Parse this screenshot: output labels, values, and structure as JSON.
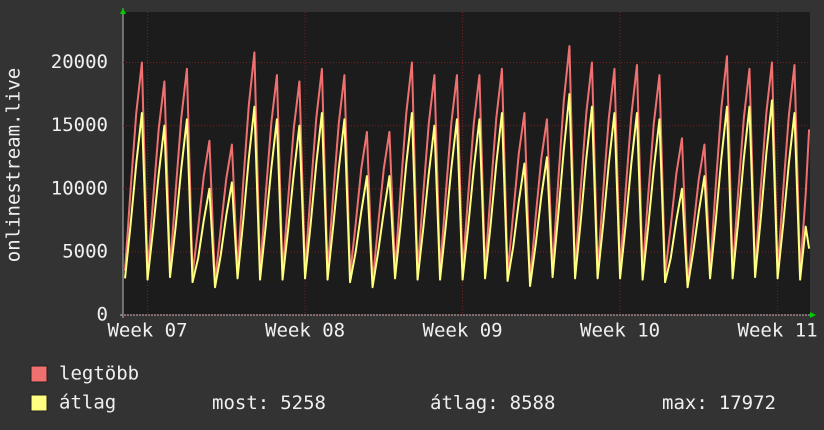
{
  "chart_data": {
    "type": "line",
    "y_label": "onlinestream.live",
    "xlim": [
      -1.09,
      29.44
    ],
    "ylim": [
      0,
      24000
    ],
    "xticks": [
      {
        "value": 0,
        "label": "Week 07"
      },
      {
        "value": 7,
        "label": "Week 08"
      },
      {
        "value": 14,
        "label": "Week 09"
      },
      {
        "value": 21,
        "label": "Week 10"
      },
      {
        "value": 28,
        "label": "Week 11"
      }
    ],
    "yticks": [
      0,
      5000,
      10000,
      15000,
      20000
    ],
    "grid": true,
    "x": [
      -1,
      -0.75,
      -0.5,
      -0.25,
      0,
      0.25,
      0.5,
      0.75,
      1,
      1.25,
      1.5,
      1.75,
      2,
      2.25,
      2.5,
      2.75,
      3,
      3.25,
      3.5,
      3.75,
      4,
      4.25,
      4.5,
      4.75,
      5,
      5.25,
      5.5,
      5.75,
      6,
      6.25,
      6.5,
      6.75,
      7,
      7.25,
      7.5,
      7.75,
      8,
      8.25,
      8.5,
      8.75,
      9,
      9.25,
      9.5,
      9.75,
      10,
      10.25,
      10.5,
      10.75,
      11,
      11.25,
      11.5,
      11.75,
      12,
      12.25,
      12.5,
      12.75,
      13,
      13.25,
      13.5,
      13.75,
      14,
      14.25,
      14.5,
      14.75,
      15,
      15.25,
      15.5,
      15.75,
      16,
      16.25,
      16.5,
      16.75,
      17,
      17.25,
      17.5,
      17.75,
      18,
      18.25,
      18.5,
      18.75,
      19,
      19.25,
      19.5,
      19.75,
      20,
      20.25,
      20.5,
      20.75,
      21,
      21.25,
      21.5,
      21.75,
      22,
      22.25,
      22.5,
      22.75,
      23,
      23.25,
      23.5,
      23.75,
      24,
      24.25,
      24.5,
      24.75,
      25,
      25.25,
      25.5,
      25.75,
      26,
      26.25,
      26.5,
      26.75,
      27,
      27.25,
      27.5,
      27.75,
      28,
      28.25,
      28.5,
      28.75,
      29,
      29.25,
      29.4
    ],
    "series": [
      {
        "name": "legtöbb",
        "color": "#f07070",
        "values": [
          3500,
          10000,
          16000,
          20000,
          3400,
          9200,
          14800,
          18500,
          3600,
          9800,
          15600,
          19500,
          3200,
          6900,
          11000,
          13800,
          2600,
          6800,
          10800,
          13500,
          3500,
          10400,
          16600,
          20800,
          3400,
          9500,
          15200,
          19000,
          3300,
          9200,
          14800,
          18500,
          3500,
          9800,
          15600,
          19500,
          3400,
          9500,
          15200,
          19000,
          3200,
          7200,
          11600,
          14500,
          2500,
          7200,
          11600,
          14500,
          3500,
          10000,
          16000,
          20000,
          3400,
          9500,
          15200,
          19000,
          3400,
          9500,
          15200,
          19000,
          3400,
          9500,
          15200,
          19000,
          3500,
          9800,
          15600,
          19500,
          3300,
          8000,
          12800,
          16000,
          2600,
          7800,
          12400,
          15500,
          3600,
          10600,
          17000,
          21300,
          3500,
          10000,
          16000,
          20000,
          3500,
          9800,
          15600,
          19500,
          3500,
          9900,
          15800,
          19800,
          3400,
          9500,
          15200,
          19000,
          3200,
          7000,
          11200,
          14000,
          2500,
          6800,
          10800,
          13500,
          3500,
          10200,
          16400,
          20500,
          3500,
          9800,
          15600,
          19500,
          3500,
          10000,
          16000,
          20000,
          3500,
          9900,
          15800,
          19800,
          3400,
          9600,
          14700
        ]
      },
      {
        "name": "átlag",
        "color": "#ffff80",
        "values": [
          2900,
          7200,
          12000,
          16000,
          2800,
          6800,
          11200,
          15000,
          3000,
          7000,
          11600,
          15500,
          2600,
          4500,
          7500,
          10000,
          2200,
          4700,
          7900,
          10500,
          2900,
          7400,
          12400,
          16500,
          2800,
          7000,
          11600,
          15500,
          2800,
          6800,
          11200,
          15000,
          2900,
          7200,
          12000,
          16000,
          2800,
          7000,
          11600,
          15500,
          2600,
          5000,
          8200,
          11000,
          2200,
          5000,
          8200,
          11000,
          2900,
          7200,
          12000,
          16000,
          2800,
          6800,
          11200,
          15000,
          2800,
          7000,
          11600,
          15500,
          2800,
          7000,
          11600,
          15500,
          2900,
          7200,
          12000,
          16000,
          2700,
          5400,
          9000,
          12000,
          2300,
          5600,
          9400,
          12500,
          3000,
          7900,
          13100,
          17500,
          2900,
          7400,
          12400,
          16500,
          2900,
          7200,
          12000,
          16000,
          2900,
          7200,
          12000,
          16000,
          2800,
          7000,
          11600,
          15500,
          2600,
          4500,
          7500,
          10000,
          2200,
          5000,
          8200,
          11000,
          2900,
          7400,
          12400,
          16500,
          2900,
          7400,
          12400,
          16500,
          3000,
          7600,
          12800,
          17000,
          2900,
          7200,
          12000,
          16000,
          2800,
          7000,
          5258
        ]
      }
    ],
    "stats": [
      {
        "label": "most:",
        "value": 5258
      },
      {
        "label": "átlag:",
        "value": 8588
      },
      {
        "label": "max:",
        "value": 17972
      }
    ]
  }
}
